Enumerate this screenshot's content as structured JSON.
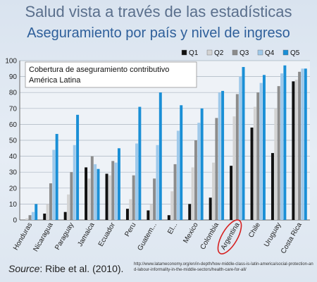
{
  "title": "Salud vista a través de las estadísticas",
  "subtitle": "Aseguramiento por país y nivel de ingreso",
  "source_label": "Source",
  "source_text": ": Ribe et al. (2010).",
  "url": "http://www.latameconomy.org/en/in-depth/how-middle-class-is-latin-america/social-protection-and-labour-informality-in-the-middle-sectors/health-care-for-all/",
  "highlight": "Argentina",
  "chart_data": {
    "type": "bar",
    "annotation": [
      "Cobertura de aseguramiento contributivo",
      "América Latina"
    ],
    "categories": [
      "Honduras",
      "Nicaragua",
      "Paraguay",
      "Jamaica",
      "Ecuador",
      "Peru",
      "Guatem...",
      "El...",
      "Mexico",
      "Colombia",
      "Argentina",
      "Chile",
      "Uruguay",
      "Costa Rica"
    ],
    "ylim": [
      0,
      100
    ],
    "yticks": [
      0,
      10,
      20,
      30,
      40,
      50,
      60,
      70,
      80,
      90,
      100
    ],
    "legend_position": "top-right",
    "grid": true,
    "series": [
      {
        "name": "Q1",
        "color": "#111111",
        "values": [
          0,
          4,
          5,
          33,
          29,
          7,
          6,
          3,
          10,
          14,
          34,
          58,
          42,
          87
        ]
      },
      {
        "name": "Q2",
        "color": "#d3d3d3",
        "values": [
          1,
          10,
          16,
          26,
          28,
          13,
          10,
          18,
          33,
          36,
          65,
          71,
          70,
          88
        ]
      },
      {
        "name": "Q3",
        "color": "#8c8c8c",
        "values": [
          3,
          23,
          30,
          40,
          37,
          28,
          26,
          35,
          50,
          64,
          79,
          80,
          84,
          93
        ]
      },
      {
        "name": "Q4",
        "color": "#9fc9ea",
        "values": [
          5,
          44,
          47,
          35,
          36,
          48,
          47,
          56,
          61,
          80,
          90,
          86,
          92,
          95
        ]
      },
      {
        "name": "Q5",
        "color": "#1a8fd6",
        "values": [
          10,
          54,
          66,
          32,
          45,
          71,
          80,
          72,
          70,
          81,
          96,
          91,
          97,
          95
        ]
      }
    ]
  }
}
